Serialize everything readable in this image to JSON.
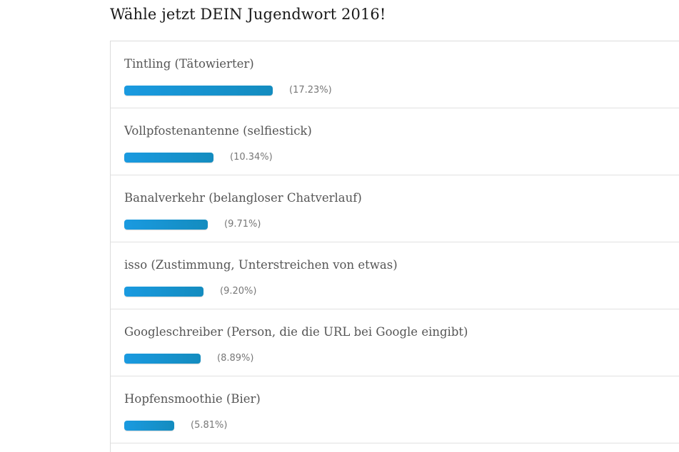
{
  "poll": {
    "title": "Wähle jetzt DEIN Jugendwort 2016!",
    "bar_color": "#1a9ae0",
    "options": [
      {
        "label": "Tintling (Tätowierter)",
        "percent_label": "(17.23%)",
        "percent": 17.23
      },
      {
        "label": "Vollpfostenantenne (selfiestick)",
        "percent_label": "(10.34%)",
        "percent": 10.34
      },
      {
        "label": "Banalverkehr (belangloser Chatverlauf)",
        "percent_label": "(9.71%)",
        "percent": 9.71
      },
      {
        "label": "isso (Zustimmung, Unterstreichen von etwas)",
        "percent_label": "(9.20%)",
        "percent": 9.2
      },
      {
        "label": "Googleschreiber (Person, die die URL bei Google eingibt)",
        "percent_label": "(8.89%)",
        "percent": 8.89
      },
      {
        "label": "Hopfensmoothie (Bier)",
        "percent_label": "(5.81%)",
        "percent": 5.81
      }
    ]
  }
}
